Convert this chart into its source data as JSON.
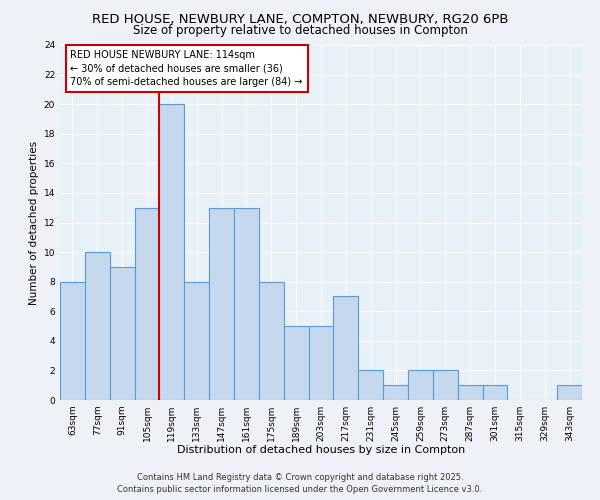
{
  "title_line1": "RED HOUSE, NEWBURY LANE, COMPTON, NEWBURY, RG20 6PB",
  "title_line2": "Size of property relative to detached houses in Compton",
  "xlabel": "Distribution of detached houses by size in Compton",
  "ylabel": "Number of detached properties",
  "categories": [
    "63sqm",
    "77sqm",
    "91sqm",
    "105sqm",
    "119sqm",
    "133sqm",
    "147sqm",
    "161sqm",
    "175sqm",
    "189sqm",
    "203sqm",
    "217sqm",
    "231sqm",
    "245sqm",
    "259sqm",
    "273sqm",
    "287sqm",
    "301sqm",
    "315sqm",
    "329sqm",
    "343sqm"
  ],
  "values": [
    8,
    10,
    9,
    13,
    20,
    8,
    13,
    13,
    8,
    5,
    5,
    7,
    2,
    1,
    2,
    2,
    1,
    1,
    0,
    0,
    1
  ],
  "bar_color": "#c5d8ed",
  "bar_edge_color": "#5b9bd5",
  "bg_color": "#e8f0f8",
  "fig_bg_color": "#eef2f8",
  "grid_color": "#ffffff",
  "annotation_line1": "RED HOUSE NEWBURY LANE: 114sqm",
  "annotation_line2": "← 30% of detached houses are smaller (36)",
  "annotation_line3": "70% of semi-detached houses are larger (84) →",
  "annotation_box_color": "#cc0000",
  "ref_line_x": 3.5,
  "ref_line_color": "#cc0000",
  "ylim": [
    0,
    24
  ],
  "yticks": [
    0,
    2,
    4,
    6,
    8,
    10,
    12,
    14,
    16,
    18,
    20,
    22,
    24
  ],
  "footer_line1": "Contains HM Land Registry data © Crown copyright and database right 2025.",
  "footer_line2": "Contains public sector information licensed under the Open Government Licence v3.0.",
  "title_fontsize": 9.5,
  "subtitle_fontsize": 8.5,
  "xlabel_fontsize": 8,
  "ylabel_fontsize": 7.5,
  "tick_fontsize": 6.5,
  "annotation_fontsize": 7,
  "footer_fontsize": 6
}
